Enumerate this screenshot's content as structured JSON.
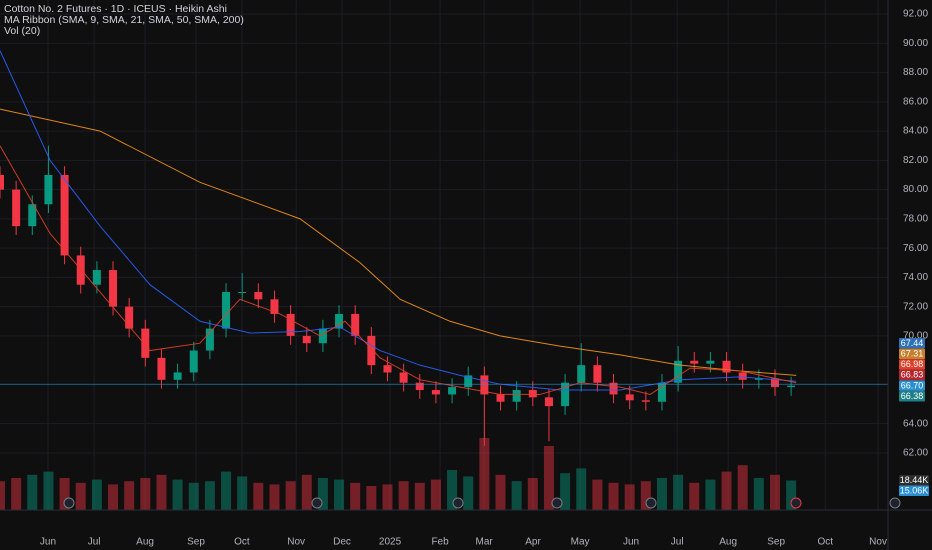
{
  "chart_data": {
    "type": "candlestick",
    "title": "Cotton No. 2 Futures · 1D · ICEUS · Heikin Ashi",
    "indicator_label": "MA Ribbon (SMA, 9, SMA, 21, SMA, 50, SMA, 200)",
    "volume_label": "Vol (20)",
    "up_color": "#089981",
    "down_color": "#f23645",
    "xlim": [
      0,
      385
    ],
    "ylim": [
      58.1,
      92.96
    ],
    "volume_lim": [
      0,
      50
    ],
    "grid": true,
    "yticks": [
      {
        "value": 62,
        "label": "62.00"
      },
      {
        "value": 64,
        "label": "64.00"
      },
      {
        "value": 70,
        "label": "70.00"
      },
      {
        "value": 72,
        "label": "72.00"
      },
      {
        "value": 74,
        "label": "74.00"
      },
      {
        "value": 76,
        "label": "76.00"
      },
      {
        "value": 78,
        "label": "78.00"
      },
      {
        "value": 80,
        "label": "80.00"
      },
      {
        "value": 82,
        "label": "82.00"
      },
      {
        "value": 84,
        "label": "84.00"
      },
      {
        "value": 86,
        "label": "86.00"
      },
      {
        "value": 88,
        "label": "88.00"
      },
      {
        "value": 90,
        "label": "90.00"
      },
      {
        "value": 92,
        "label": "92.00"
      }
    ],
    "xticks": [
      {
        "value": 20.8,
        "label": "Jun"
      },
      {
        "value": 40.8,
        "label": "Jul"
      },
      {
        "value": 62.9,
        "label": "Aug"
      },
      {
        "value": 85,
        "label": "Sep"
      },
      {
        "value": 104.9,
        "label": "Oct"
      },
      {
        "value": 128.4,
        "label": "Nov"
      },
      {
        "value": 148.3,
        "label": "Dec"
      },
      {
        "value": 169.1,
        "label": "2025"
      },
      {
        "value": 190.8,
        "label": "Feb"
      },
      {
        "value": 209.9,
        "label": "Mar"
      },
      {
        "value": 231.1,
        "label": "Apr"
      },
      {
        "value": 251.5,
        "label": "May"
      },
      {
        "value": 273.6,
        "label": "Jun"
      },
      {
        "value": 293.6,
        "label": "Jul"
      },
      {
        "value": 315.7,
        "label": "Aug"
      },
      {
        "value": 336.5,
        "label": "Sep"
      },
      {
        "value": 357.8,
        "label": "Oct"
      },
      {
        "value": 380.7,
        "label": "Nov"
      }
    ],
    "candles": {
      "x": [
        0,
        7,
        14,
        21,
        28,
        35,
        42,
        49,
        56,
        63,
        70,
        77,
        84,
        91,
        98,
        105,
        112,
        119,
        126,
        133,
        140,
        147,
        154,
        161,
        168,
        175,
        182,
        189,
        196,
        203,
        210,
        217,
        224,
        231,
        238,
        245,
        252,
        259,
        266,
        273,
        280,
        287,
        294,
        301,
        308,
        315,
        322,
        329,
        336,
        343
      ],
      "open": [
        81,
        80,
        77.5,
        79,
        81,
        75.5,
        73.5,
        74.5,
        72,
        70.5,
        68.5,
        67,
        67.5,
        69,
        70.5,
        73,
        73,
        72.5,
        71.5,
        70,
        69.5,
        70.5,
        71.5,
        70,
        68,
        67.5,
        66.8,
        66.3,
        66,
        66.5,
        67.3,
        66,
        65.5,
        66.3,
        65.8,
        65.2,
        66.8,
        68,
        66.8,
        66,
        65.6,
        65.5,
        66.8,
        68.3,
        68.1,
        68.3,
        67.5,
        67,
        67.1,
        66.5
      ],
      "high": [
        81.6,
        80.6,
        79.6,
        83,
        81.6,
        76.1,
        75.1,
        75.1,
        72.6,
        71.1,
        69.1,
        68.1,
        69.6,
        71.1,
        73.6,
        74.3,
        73.6,
        73.1,
        72.1,
        70.6,
        71.1,
        72.1,
        72.1,
        70.6,
        68.6,
        68.1,
        67.4,
        66.9,
        67.1,
        67.9,
        67.9,
        66.6,
        66.9,
        66.9,
        66.4,
        67.4,
        69.5,
        68.6,
        67.4,
        66.6,
        66.2,
        67.4,
        69.3,
        68.9,
        68.9,
        68.9,
        68.1,
        67.7,
        67.7,
        67.2
      ],
      "low": [
        79.4,
        76.9,
        76.9,
        78.4,
        74.9,
        72.9,
        72.9,
        71.4,
        69.9,
        67.9,
        66.4,
        66.4,
        66.9,
        68.4,
        69.9,
        72.4,
        71.9,
        70.9,
        69.4,
        68.9,
        68.9,
        69.9,
        69.4,
        67.4,
        66.9,
        66.2,
        65.7,
        65.4,
        65.4,
        65.9,
        62.5,
        64.9,
        64.9,
        65.2,
        62.8,
        64.6,
        66.2,
        66.2,
        65.4,
        65,
        64.9,
        64.9,
        66.2,
        67.5,
        67.5,
        66.9,
        66.4,
        66.4,
        65.9,
        65.9
      ],
      "close": [
        80,
        77.5,
        79,
        81,
        75.5,
        73.5,
        74.5,
        72,
        70.5,
        68.5,
        67,
        67.5,
        69,
        70.5,
        73,
        73,
        72.5,
        71.5,
        70,
        69.5,
        70.5,
        71.5,
        70,
        68,
        67.5,
        66.8,
        66.3,
        66,
        66.5,
        67.3,
        66,
        65.5,
        66.3,
        65.8,
        65.2,
        66.8,
        68,
        66.8,
        66,
        65.6,
        65.5,
        66.8,
        68.3,
        68.1,
        68.3,
        67.5,
        67,
        67.1,
        66.5,
        66.6
      ],
      "volume": [
        18,
        20,
        22,
        24,
        20,
        17,
        19,
        16,
        18,
        20,
        22,
        19,
        17,
        18,
        24,
        21,
        17,
        16,
        18,
        22,
        20,
        19,
        17,
        15,
        16,
        18,
        17,
        19,
        25,
        21,
        45,
        22,
        18,
        20,
        40,
        23,
        26,
        19,
        17,
        16,
        18,
        20,
        22,
        17,
        19,
        24,
        28,
        20,
        22,
        18.44
      ]
    },
    "ma_lines": [
      {
        "color": "#f7931a",
        "x": [
          0,
          43.4,
          86.7,
          130.1,
          156.1,
          173.5,
          195.1,
          216.8,
          242.8,
          268.9,
          294.9,
          320.9,
          345.2
        ],
        "values": [
          85.5,
          84,
          80.5,
          78,
          75,
          72.5,
          71,
          70,
          69.3,
          68.7,
          68,
          67.6,
          67.3
        ]
      },
      {
        "color": "#2962ff",
        "x": [
          0,
          21.7,
          43.4,
          65,
          86.7,
          108.4,
          130.1,
          147.4,
          164.8,
          182.1,
          199.5,
          216.8,
          242.8,
          268.9,
          294.9,
          320.9,
          345.2
        ],
        "values": [
          89.5,
          82,
          77.5,
          73.5,
          71,
          70.2,
          70.3,
          70.6,
          69,
          68,
          67.3,
          66.7,
          66.3,
          66.3,
          67,
          67.2,
          66.9
        ]
      },
      {
        "color": "#e0402a",
        "x": [
          0,
          21.7,
          43.4,
          65,
          86.7,
          104,
          121.4,
          138.8,
          149.6,
          164.8,
          182.1,
          199.5,
          216.8,
          234.2,
          251.5,
          268.9,
          281.9,
          299.2,
          320.9,
          345.2
        ],
        "values": [
          83,
          77,
          73,
          69,
          69.5,
          72.5,
          71.5,
          70,
          71,
          68.5,
          67,
          66.5,
          66,
          66,
          66.8,
          66.5,
          66,
          67.8,
          67.6,
          66.8
        ]
      }
    ],
    "current_price": 66.7,
    "price_labels": [
      {
        "value": 67.44,
        "label": "67.44",
        "color": "#2f6fb3"
      },
      {
        "value": 67.31,
        "label": "67.31",
        "color": "#c77d2a"
      },
      {
        "value": 66.98,
        "label": "66.98",
        "color": "#e0402a"
      },
      {
        "value": 66.83,
        "label": "66.83",
        "color": "#b3262c"
      },
      {
        "value": 66.7,
        "label": "66.70",
        "color": "#2a8fd0"
      },
      {
        "value": 66.38,
        "label": "66.38",
        "color": "#1f7f86"
      }
    ],
    "volume_labels": [
      {
        "value": 18.44,
        "label": "18.44K",
        "color": "#2c2c2c"
      },
      {
        "value": 15.06,
        "label": "15.06K",
        "color": "#2a8fd0"
      }
    ]
  }
}
